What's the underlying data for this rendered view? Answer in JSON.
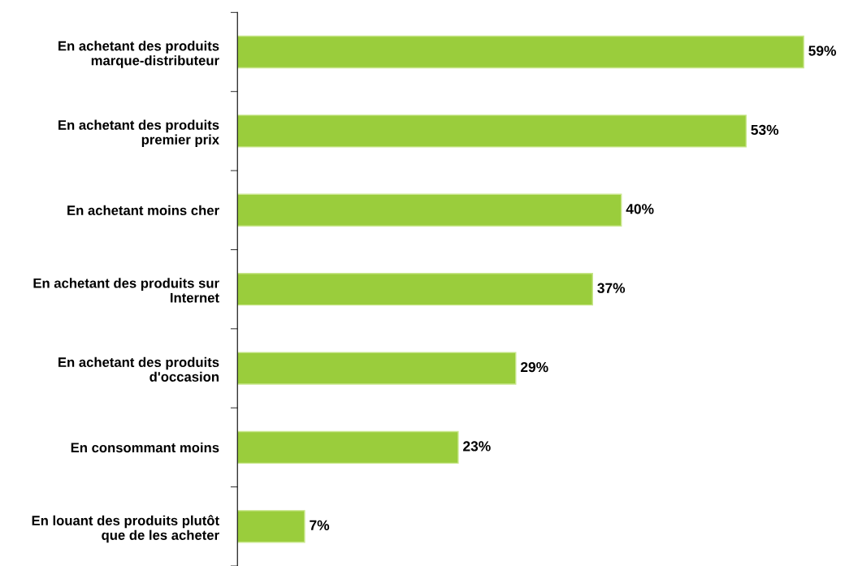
{
  "chart_data": {
    "type": "bar",
    "orientation": "horizontal",
    "categories": [
      "En achetant des produits marque-distributeur",
      "En achetant des produits premier prix",
      "En achetant moins cher",
      "En achetant des produits sur Internet",
      "En achetant des produits d'occasion",
      "En consommant moins",
      "En louant des produits plutôt que de les acheter"
    ],
    "values": [
      59,
      53,
      40,
      37,
      29,
      23,
      7
    ],
    "value_labels": [
      "59%",
      "53%",
      "40%",
      "37%",
      "29%",
      "23%",
      "7%"
    ],
    "color": "#9acd3c",
    "grid": false,
    "legend": false,
    "tick_labels": "y"
  }
}
